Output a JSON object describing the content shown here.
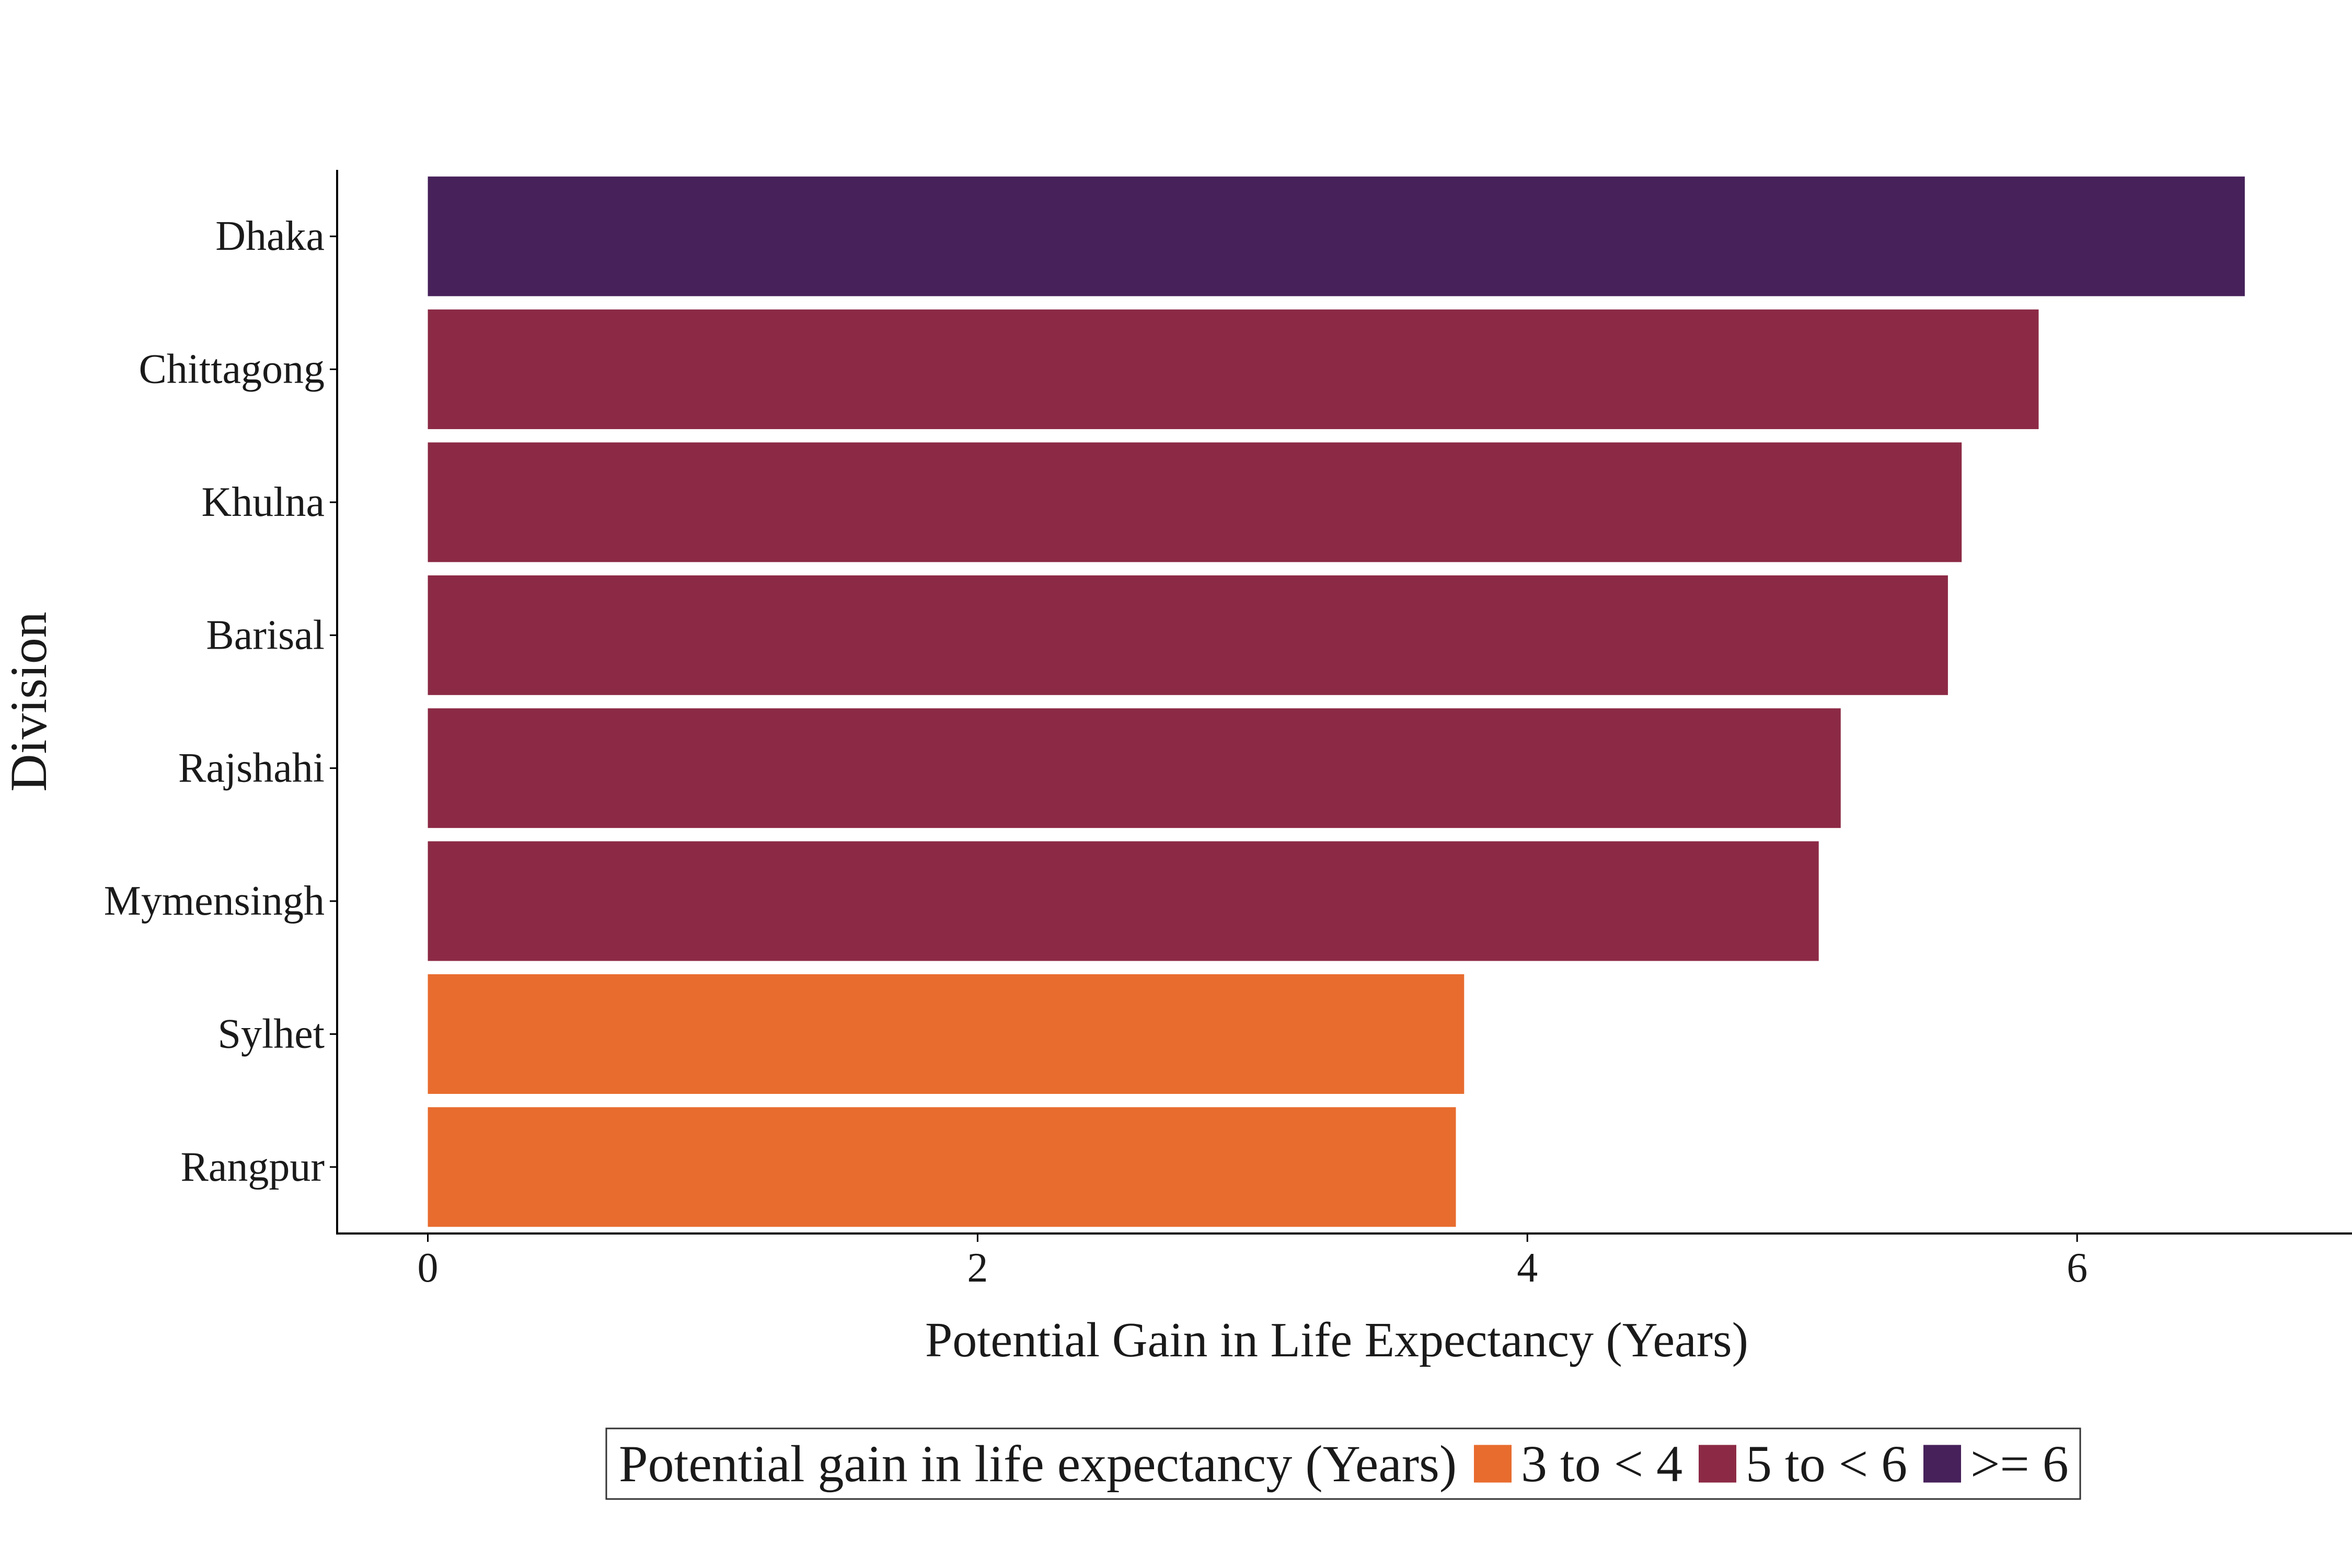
{
  "chart_data": {
    "type": "bar",
    "orientation": "horizontal",
    "title": "",
    "xlabel": "Potential Gain in Life Expectancy (Years)",
    "ylabel": "Division",
    "xlim": [
      -0.33,
      7.0
    ],
    "xticks": [
      0,
      2,
      4,
      6
    ],
    "grid": false,
    "categories": [
      "Dhaka",
      "Chittagong",
      "Khulna",
      "Barisal",
      "Rajshahi",
      "Mymensingh",
      "Sylhet",
      "Rangpur"
    ],
    "values": [
      6.61,
      5.86,
      5.58,
      5.53,
      5.14,
      5.06,
      3.77,
      3.74
    ],
    "groups": [
      ">= 6",
      "5 to < 6",
      "5 to < 6",
      "5 to < 6",
      "5 to < 6",
      "5 to < 6",
      "3 to < 4",
      "3 to < 4"
    ],
    "legend": {
      "placement": "bottom",
      "title": "Potential gain in life expectancy (Years)",
      "entries": [
        {
          "label": "3 to < 4",
          "color": "#E86C2E"
        },
        {
          "label": "5 to < 6",
          "color": "#8C2A45"
        },
        {
          "label": ">= 6",
          "color": "#46215A"
        }
      ]
    }
  }
}
